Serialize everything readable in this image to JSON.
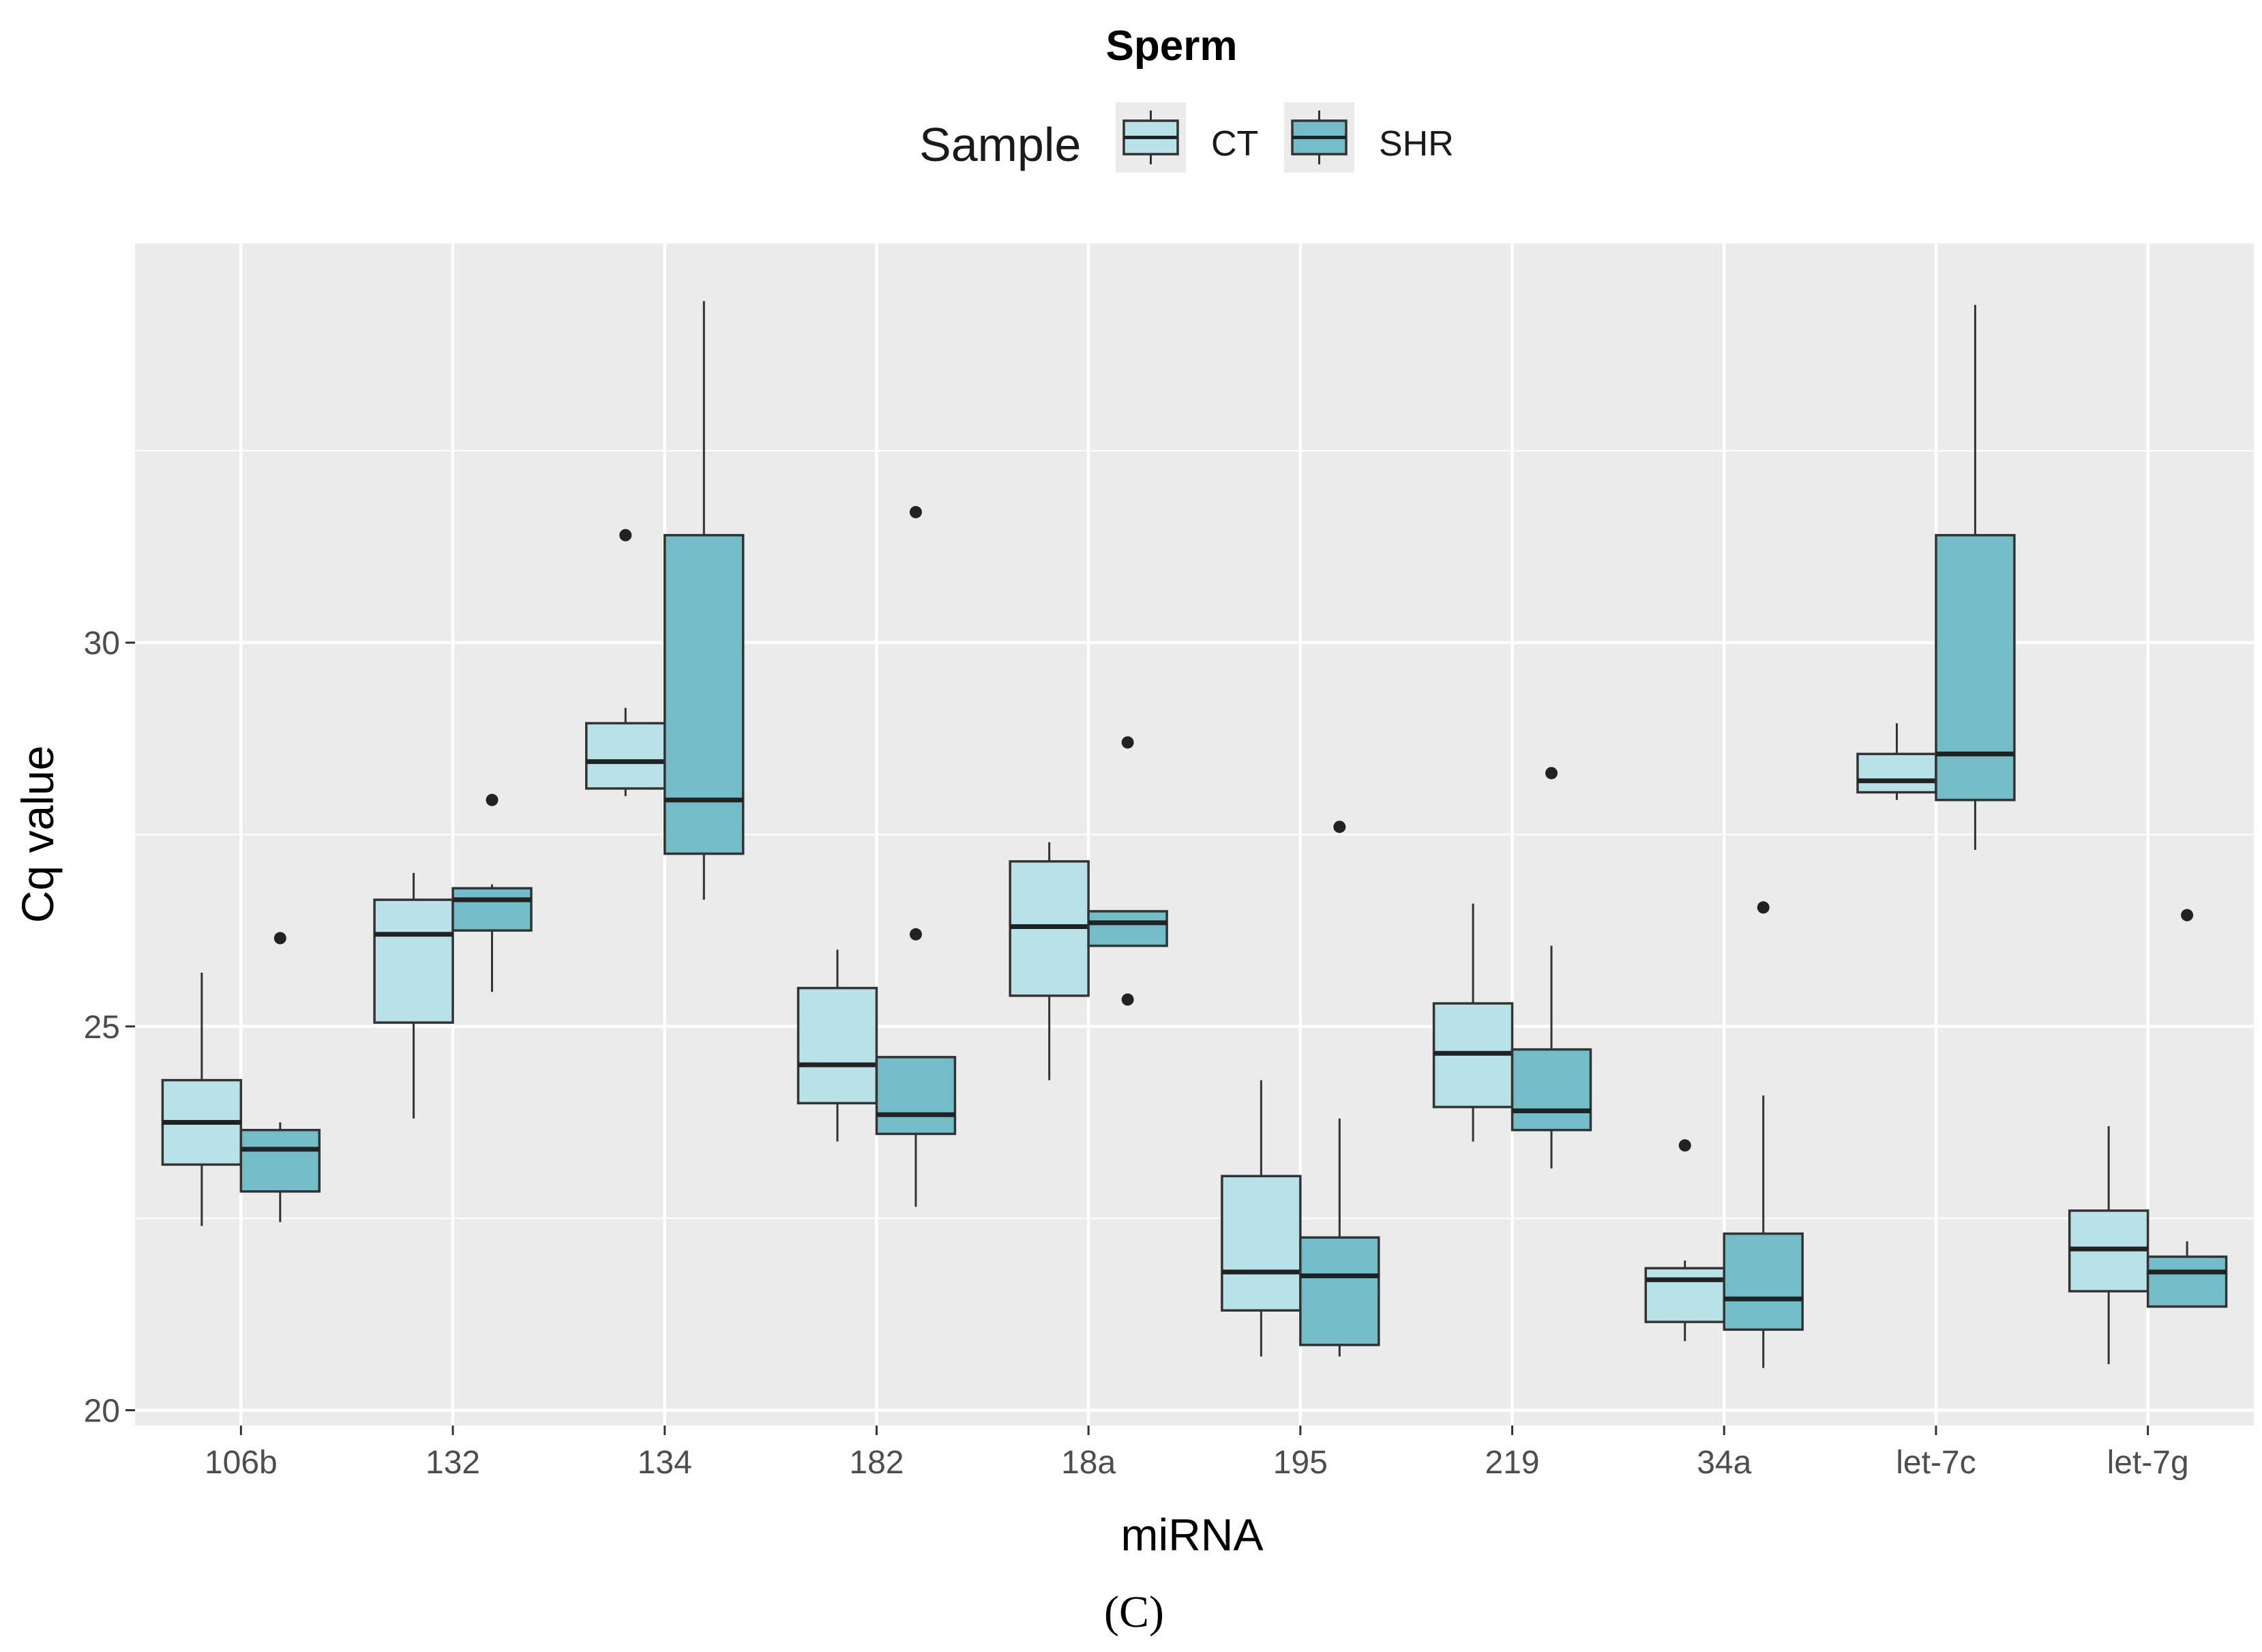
{
  "chart_data": {
    "type": "boxplot",
    "title": "Sperm",
    "xlabel": "miRNA",
    "ylabel": "Cq value",
    "caption": "(C)",
    "ylim": [
      19.8,
      35.2
    ],
    "yticks": [
      20,
      25,
      30
    ],
    "grid": true,
    "legend": {
      "title": "Sample",
      "position": "top",
      "entries": [
        {
          "name": "CT",
          "color": "#b8e2e8"
        },
        {
          "name": "SHR",
          "color": "#72bdc8"
        }
      ]
    },
    "categories": [
      "106b",
      "132",
      "134",
      "182",
      "18a",
      "195",
      "219",
      "34a",
      "let-7c",
      "let-7g"
    ],
    "series": [
      {
        "name": "CT",
        "color": "#b8e2e8",
        "boxes": [
          {
            "min": 22.4,
            "q1": 23.2,
            "median": 23.75,
            "q3": 24.3,
            "max": 25.7,
            "outliers": []
          },
          {
            "min": 23.8,
            "q1": 25.05,
            "median": 26.2,
            "q3": 26.65,
            "max": 27.0,
            "outliers": []
          },
          {
            "min": 28.0,
            "q1": 28.1,
            "median": 28.45,
            "q3": 28.95,
            "max": 29.15,
            "outliers": [
              31.4
            ]
          },
          {
            "min": 23.5,
            "q1": 24.0,
            "median": 24.5,
            "q3": 25.5,
            "max": 26.0,
            "outliers": []
          },
          {
            "min": 24.3,
            "q1": 25.4,
            "median": 26.3,
            "q3": 27.15,
            "max": 27.4,
            "outliers": []
          },
          {
            "min": 20.7,
            "q1": 21.3,
            "median": 21.8,
            "q3": 23.05,
            "max": 24.3,
            "outliers": []
          },
          {
            "min": 23.5,
            "q1": 23.95,
            "median": 24.65,
            "q3": 25.3,
            "max": 26.6,
            "outliers": []
          },
          {
            "min": 20.9,
            "q1": 21.15,
            "median": 21.7,
            "q3": 21.85,
            "max": 21.95,
            "outliers": [
              23.45
            ]
          },
          {
            "min": 27.95,
            "q1": 28.05,
            "median": 28.2,
            "q3": 28.55,
            "max": 28.95,
            "outliers": []
          },
          {
            "min": 20.6,
            "q1": 21.55,
            "median": 22.1,
            "q3": 22.6,
            "max": 23.7,
            "outliers": []
          }
        ]
      },
      {
        "name": "SHR",
        "color": "#72bdc8",
        "boxes": [
          {
            "min": 22.45,
            "q1": 22.85,
            "median": 23.4,
            "q3": 23.65,
            "max": 23.75,
            "outliers": [
              26.15
            ]
          },
          {
            "min": 25.45,
            "q1": 26.25,
            "median": 26.65,
            "q3": 26.8,
            "max": 26.85,
            "outliers": [
              27.95
            ]
          },
          {
            "min": 26.65,
            "q1": 27.25,
            "median": 27.95,
            "q3": 31.4,
            "max": 34.45,
            "outliers": []
          },
          {
            "min": 22.65,
            "q1": 23.6,
            "median": 23.85,
            "q3": 24.6,
            "max": 24.6,
            "outliers": [
              31.7,
              26.2
            ]
          },
          {
            "min": 26.05,
            "q1": 26.05,
            "median": 26.35,
            "q3": 26.5,
            "max": 26.5,
            "outliers": [
              28.7,
              25.35
            ]
          },
          {
            "min": 20.7,
            "q1": 20.85,
            "median": 21.75,
            "q3": 22.25,
            "max": 23.8,
            "outliers": [
              27.6
            ]
          },
          {
            "min": 23.15,
            "q1": 23.65,
            "median": 23.9,
            "q3": 24.7,
            "max": 26.05,
            "outliers": [
              28.3
            ]
          },
          {
            "min": 20.55,
            "q1": 21.05,
            "median": 21.45,
            "q3": 22.3,
            "max": 24.1,
            "outliers": [
              26.55
            ]
          },
          {
            "min": 27.3,
            "q1": 27.95,
            "median": 28.55,
            "q3": 31.4,
            "max": 34.4,
            "outliers": []
          },
          {
            "min": 21.35,
            "q1": 21.35,
            "median": 21.8,
            "q3": 22.0,
            "max": 22.2,
            "outliers": [
              26.45
            ]
          }
        ]
      }
    ]
  }
}
